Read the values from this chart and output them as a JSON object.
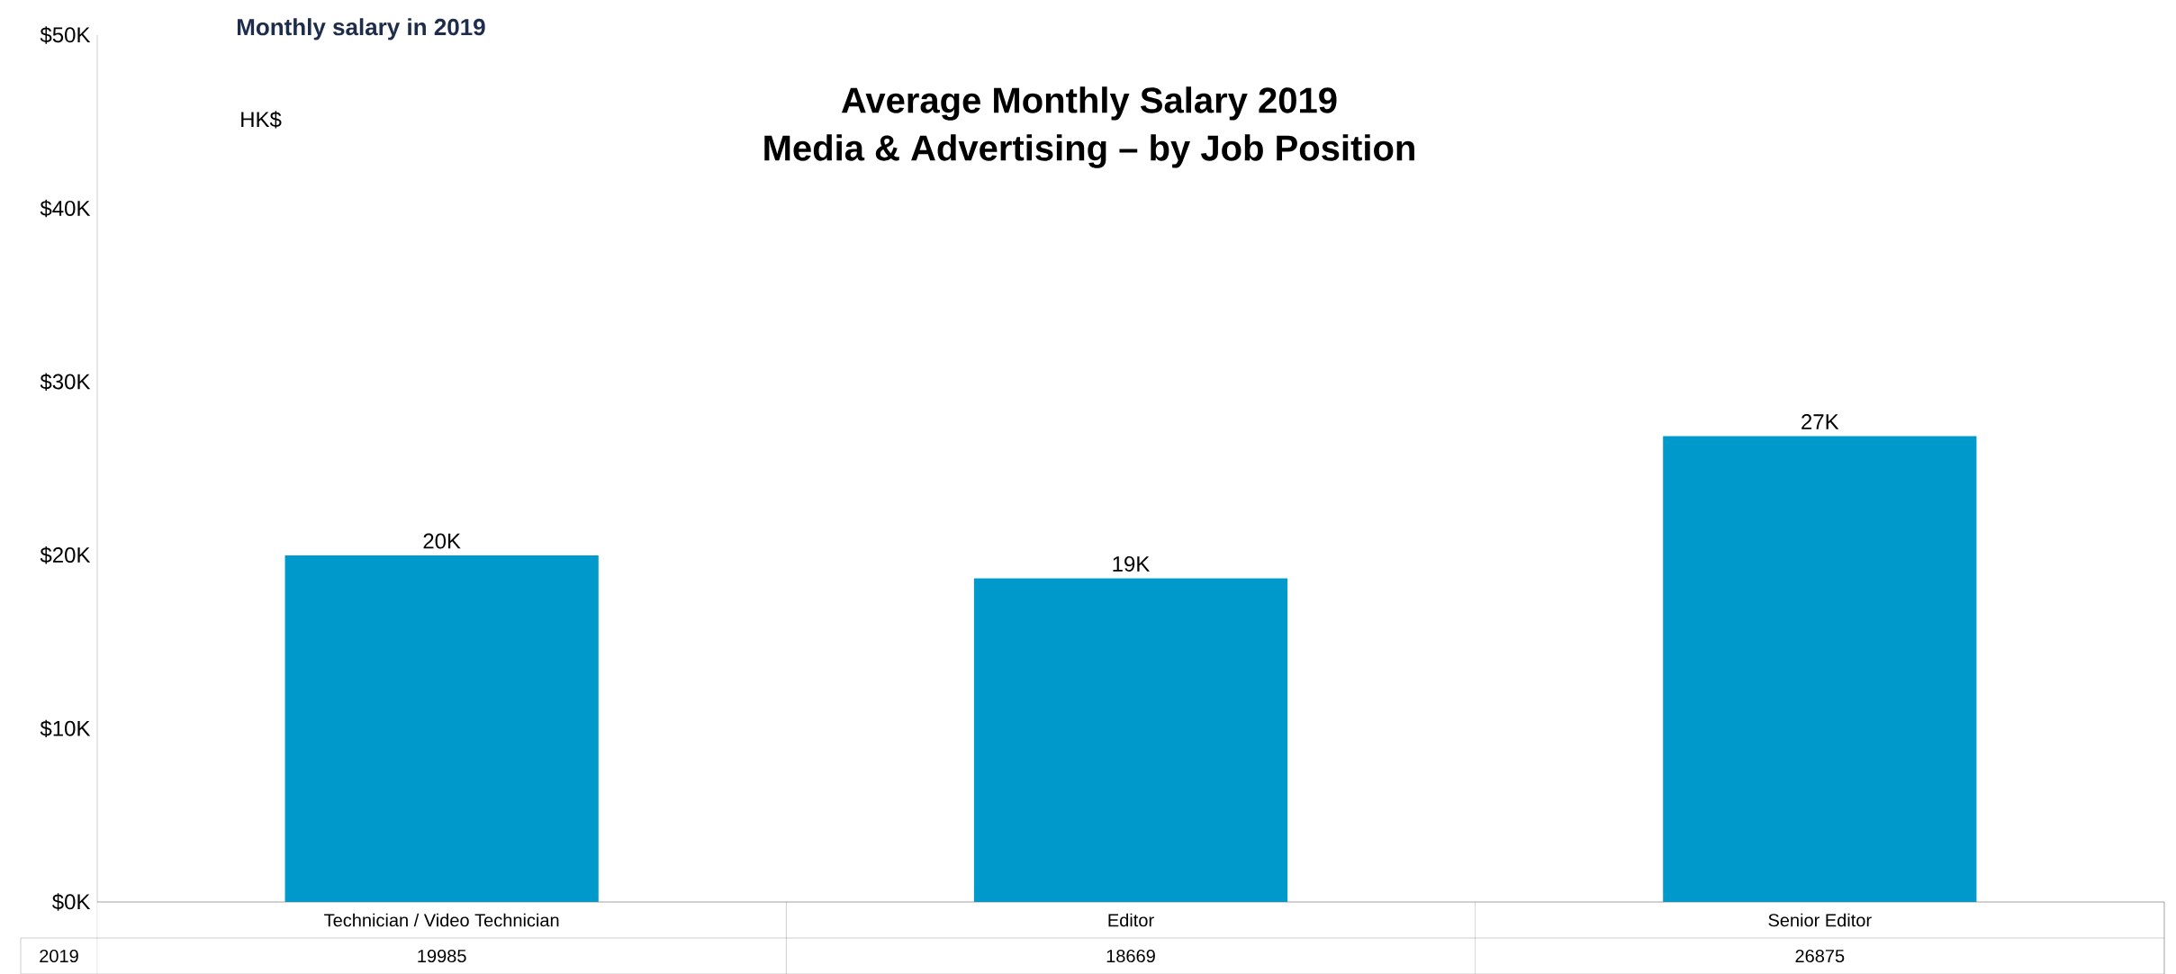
{
  "chart_data": {
    "type": "bar",
    "title": "Average Monthly Salary 2019",
    "subtitle": "Media & Advertising – by Job Position",
    "categories": [
      "Technician / Video Technician",
      "Editor",
      "Senior Editor"
    ],
    "series": [
      {
        "name": "2019",
        "color": "#0099cc",
        "values": [
          19985,
          18669,
          26875
        ],
        "value_labels": [
          "19985",
          "18669",
          "26875"
        ]
      }
    ],
    "ylim": [
      0,
      50000
    ],
    "yticks": [
      {
        "value": 0,
        "label": "$0K"
      },
      {
        "value": 10000,
        "label": "$10K"
      },
      {
        "value": 20000,
        "label": "$20K"
      },
      {
        "value": 30000,
        "label": "$30K"
      },
      {
        "value": 40000,
        "label": "$40K"
      },
      {
        "value": 50000,
        "label": "$50K"
      }
    ],
    "annotations": [
      "Monthly salary in 2019",
      "HK$",
      {
        "text": "20K",
        "x": "Technician / Video Technician",
        "y": 19985
      },
      {
        "text": "19K",
        "x": "Editor",
        "y": 18669
      },
      {
        "text": "27K",
        "x": "Senior Editor",
        "y": 26875
      }
    ]
  }
}
